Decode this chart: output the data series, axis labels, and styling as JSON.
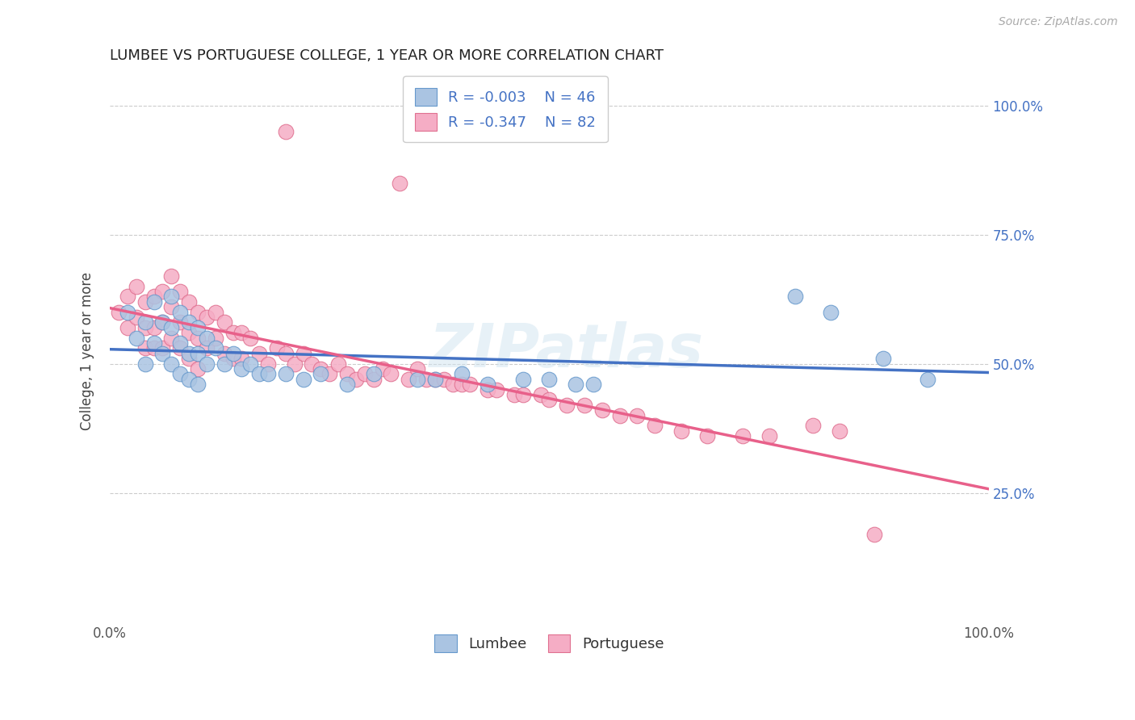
{
  "title": "LUMBEE VS PORTUGUESE COLLEGE, 1 YEAR OR MORE CORRELATION CHART",
  "ylabel": "College, 1 year or more",
  "source_text": "Source: ZipAtlas.com",
  "watermark": "ZIPatlas",
  "lumbee_R": -0.003,
  "lumbee_N": 46,
  "portuguese_R": -0.347,
  "portuguese_N": 82,
  "xlim": [
    0.0,
    1.0
  ],
  "ylim": [
    0.0,
    1.05
  ],
  "y_tick_positions": [
    0.25,
    0.5,
    0.75,
    1.0
  ],
  "y_tick_labels": [
    "25.0%",
    "50.0%",
    "75.0%",
    "100.0%"
  ],
  "grid_color": "#cccccc",
  "lumbee_color": "#aac4e2",
  "portuguese_color": "#f5adc5",
  "lumbee_edge_color": "#6699cc",
  "portuguese_edge_color": "#e07090",
  "lumbee_line_color": "#4472c4",
  "portuguese_line_color": "#e8608a",
  "background_color": "#ffffff",
  "lumbee_x": [
    0.02,
    0.03,
    0.04,
    0.04,
    0.05,
    0.05,
    0.06,
    0.06,
    0.07,
    0.07,
    0.07,
    0.08,
    0.08,
    0.08,
    0.09,
    0.09,
    0.09,
    0.1,
    0.1,
    0.1,
    0.11,
    0.11,
    0.12,
    0.13,
    0.14,
    0.15,
    0.16,
    0.17,
    0.18,
    0.2,
    0.22,
    0.24,
    0.27,
    0.3,
    0.35,
    0.37,
    0.4,
    0.43,
    0.47,
    0.5,
    0.53,
    0.55,
    0.78,
    0.82,
    0.88,
    0.93
  ],
  "lumbee_y": [
    0.6,
    0.55,
    0.58,
    0.5,
    0.62,
    0.54,
    0.58,
    0.52,
    0.63,
    0.57,
    0.5,
    0.6,
    0.54,
    0.48,
    0.58,
    0.52,
    0.47,
    0.57,
    0.52,
    0.46,
    0.55,
    0.5,
    0.53,
    0.5,
    0.52,
    0.49,
    0.5,
    0.48,
    0.48,
    0.48,
    0.47,
    0.48,
    0.46,
    0.48,
    0.47,
    0.47,
    0.48,
    0.46,
    0.47,
    0.47,
    0.46,
    0.46,
    0.63,
    0.6,
    0.51,
    0.47
  ],
  "portuguese_x": [
    0.01,
    0.02,
    0.02,
    0.03,
    0.03,
    0.04,
    0.04,
    0.04,
    0.05,
    0.05,
    0.05,
    0.06,
    0.06,
    0.06,
    0.07,
    0.07,
    0.07,
    0.08,
    0.08,
    0.08,
    0.09,
    0.09,
    0.09,
    0.1,
    0.1,
    0.1,
    0.11,
    0.11,
    0.12,
    0.12,
    0.13,
    0.13,
    0.14,
    0.14,
    0.15,
    0.15,
    0.16,
    0.17,
    0.18,
    0.19,
    0.2,
    0.21,
    0.22,
    0.23,
    0.24,
    0.25,
    0.26,
    0.27,
    0.28,
    0.29,
    0.3,
    0.31,
    0.32,
    0.34,
    0.35,
    0.36,
    0.37,
    0.38,
    0.39,
    0.4,
    0.41,
    0.43,
    0.44,
    0.46,
    0.47,
    0.49,
    0.5,
    0.52,
    0.54,
    0.56,
    0.58,
    0.6,
    0.62,
    0.65,
    0.68,
    0.72,
    0.75,
    0.8,
    0.83,
    0.87,
    0.2,
    0.33
  ],
  "portuguese_y": [
    0.6,
    0.63,
    0.57,
    0.65,
    0.59,
    0.62,
    0.57,
    0.53,
    0.63,
    0.57,
    0.53,
    0.64,
    0.58,
    0.53,
    0.67,
    0.61,
    0.55,
    0.64,
    0.58,
    0.53,
    0.62,
    0.56,
    0.51,
    0.6,
    0.55,
    0.49,
    0.59,
    0.53,
    0.6,
    0.55,
    0.58,
    0.52,
    0.56,
    0.51,
    0.56,
    0.51,
    0.55,
    0.52,
    0.5,
    0.53,
    0.52,
    0.5,
    0.52,
    0.5,
    0.49,
    0.48,
    0.5,
    0.48,
    0.47,
    0.48,
    0.47,
    0.49,
    0.48,
    0.47,
    0.49,
    0.47,
    0.47,
    0.47,
    0.46,
    0.46,
    0.46,
    0.45,
    0.45,
    0.44,
    0.44,
    0.44,
    0.43,
    0.42,
    0.42,
    0.41,
    0.4,
    0.4,
    0.38,
    0.37,
    0.36,
    0.36,
    0.36,
    0.38,
    0.37,
    0.17,
    0.95,
    0.85
  ]
}
